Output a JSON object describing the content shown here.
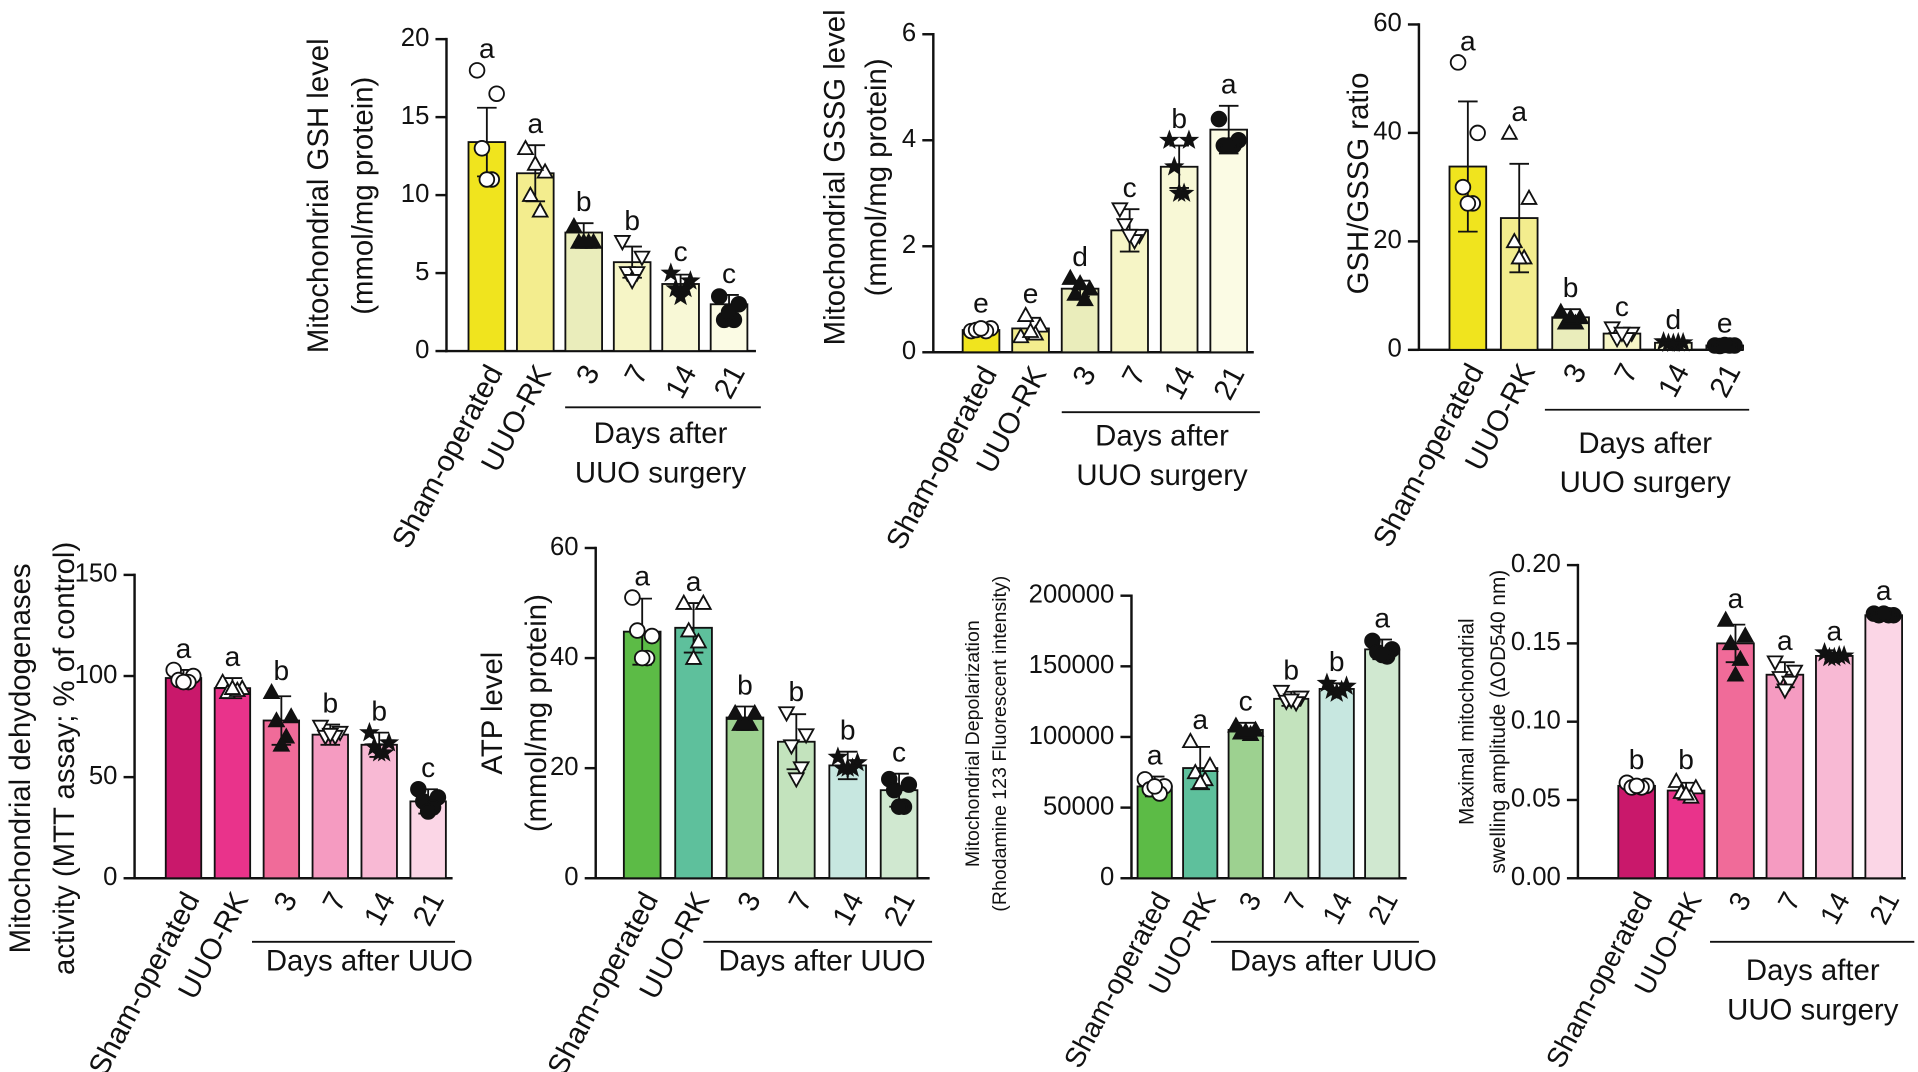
{
  "chart_data": [
    {
      "type": "bar",
      "ylabel": [
        "Mitochondrial GSH level",
        "(mmol/mg protein)"
      ],
      "categories": [
        "Sham-operated",
        "UUO-RK",
        "3",
        "7",
        "14",
        "21"
      ],
      "values": [
        13.4,
        11.4,
        7.6,
        5.7,
        4.3,
        3.0
      ],
      "errors": [
        2.2,
        1.8,
        0.6,
        1.0,
        0.6,
        0.6
      ],
      "letters": [
        "a",
        "a",
        "b",
        "b",
        "c",
        "c"
      ],
      "colors": [
        "#f0e41e",
        "#f3ed8e",
        "#eaedbb",
        "#f6f5c6",
        "#f8f8d6",
        "#fbfbe4"
      ],
      "markers": [
        "circle-open",
        "triangle-open",
        "triangle",
        "triangle-down-open",
        "star",
        "circle"
      ],
      "points": [
        [
          18,
          16.5,
          13,
          11,
          11
        ],
        [
          13,
          11.5,
          10,
          9,
          12
        ],
        [
          8,
          7,
          7,
          7,
          7
        ],
        [
          7,
          6,
          5,
          5,
          4.5
        ],
        [
          5,
          4.5,
          4,
          4,
          3.5
        ],
        [
          3.5,
          3,
          2,
          2,
          2.5
        ]
      ],
      "group_label": [
        "Days after",
        "UUO surgery"
      ],
      "ylim": [
        0,
        20
      ],
      "yticks": [
        0,
        5,
        10,
        15,
        20
      ]
    },
    {
      "type": "bar",
      "ylabel": [
        "Mitochondrial GSSG level",
        "(mmol/mg protein)"
      ],
      "categories": [
        "Sham-operated",
        "UUO-RK",
        "3",
        "7",
        "14",
        "21"
      ],
      "values": [
        0.42,
        0.45,
        1.2,
        2.3,
        3.5,
        4.2
      ],
      "errors": [
        0.1,
        0.2,
        0.15,
        0.4,
        0.4,
        0.45
      ],
      "letters": [
        "e",
        "e",
        "d",
        "c",
        "b",
        "a"
      ],
      "colors": [
        "#f0e41e",
        "#f3ed8e",
        "#eaedbb",
        "#f6f5c6",
        "#f8f8d6",
        "#fbfbe4"
      ],
      "markers": [
        "circle-open",
        "triangle-open",
        "triangle",
        "triangle-down-open",
        "star",
        "circle"
      ],
      "points": [
        [
          0.4,
          0.45,
          0.42,
          0.4,
          0.45
        ],
        [
          0.3,
          0.5,
          0.7,
          0.35,
          0.4
        ],
        [
          1.4,
          1.2,
          1.1,
          1.0,
          1.3
        ],
        [
          2.7,
          2.2,
          2.4,
          2.1,
          2.2
        ],
        [
          4.0,
          4.0,
          3.5,
          3.0,
          3.0
        ],
        [
          4.4,
          4.0,
          3.9,
          3.9,
          3.9
        ]
      ],
      "group_label": [
        "Days after",
        "UUO surgery"
      ],
      "ylim": [
        0,
        6
      ],
      "yticks": [
        0,
        2,
        4,
        6
      ]
    },
    {
      "type": "bar",
      "ylabel": [
        "GSH/GSSG ratio"
      ],
      "categories": [
        "Sham-operated",
        "UUO-RK",
        "3",
        "7",
        "14",
        "21"
      ],
      "values": [
        33.8,
        24.3,
        6,
        3,
        1.3,
        0.8
      ],
      "errors": [
        12,
        10,
        1.5,
        1,
        0.3,
        0.2
      ],
      "letters": [
        "a",
        "a",
        "b",
        "c",
        "d",
        "e"
      ],
      "colors": [
        "#f0e41e",
        "#f3ed8e",
        "#eaedbb",
        "#f6f5c6",
        "#f8f8d6",
        "#fbfbe4"
      ],
      "markers": [
        "circle-open",
        "triangle-open",
        "triangle",
        "triangle-down-open",
        "star",
        "circle"
      ],
      "points": [
        [
          53,
          40,
          30,
          27,
          27
        ],
        [
          40,
          28,
          20,
          17,
          17
        ],
        [
          7,
          6,
          5,
          5,
          6
        ],
        [
          4,
          3,
          2,
          2,
          3
        ],
        [
          1.5,
          1.3,
          1.2,
          1.3,
          1.2
        ],
        [
          0.8,
          0.8,
          0.7,
          0.8,
          0.9
        ]
      ],
      "group_label": [
        "Days after",
        "UUO surgery"
      ],
      "ylim": [
        0,
        60
      ],
      "yticks": [
        0,
        20,
        40,
        60
      ]
    },
    {
      "type": "bar",
      "ylabel": [
        "Mitochondrial dehydogenases",
        "activity (MTT assay; % of control)"
      ],
      "categories": [
        "Sham-operated",
        "UUO-RK",
        "3",
        "7",
        "14",
        "21"
      ],
      "values": [
        99,
        94,
        78,
        71,
        66,
        38
      ],
      "errors": [
        4,
        5,
        12,
        5,
        6,
        6
      ],
      "letters": [
        "a",
        "a",
        "b",
        "b",
        "b",
        "c"
      ],
      "colors": [
        "#c9186b",
        "#e9338b",
        "#f06b99",
        "#f59bc1",
        "#f8b9d4",
        "#fbd6e6"
      ],
      "markers": [
        "circle-open",
        "triangle-open",
        "triangle",
        "triangle-down-open",
        "star",
        "circle"
      ],
      "points": [
        [
          103,
          100,
          98,
          97,
          97
        ],
        [
          97,
          94,
          92,
          93,
          94
        ],
        [
          92,
          80,
          78,
          70,
          66
        ],
        [
          75,
          72,
          70,
          70,
          71
        ],
        [
          72,
          67,
          65,
          62,
          62
        ],
        [
          44,
          40,
          38,
          35,
          33
        ]
      ],
      "group_label": [
        "Days after UUO"
      ],
      "ylim": [
        0,
        150
      ],
      "yticks": [
        0,
        50,
        100,
        150
      ]
    },
    {
      "type": "bar",
      "ylabel": [
        "ATP level",
        "(mmol/mg protein)"
      ],
      "categories": [
        "Sham-operated",
        "UUO-RK",
        "3",
        "7",
        "14",
        "21"
      ],
      "values": [
        44.8,
        45.5,
        29.2,
        24.8,
        20.5,
        16
      ],
      "errors": [
        6,
        4.5,
        2,
        5,
        2.5,
        3
      ],
      "letters": [
        "a",
        "a",
        "b",
        "b",
        "b",
        "c"
      ],
      "colors": [
        "#5cbb46",
        "#5ec09c",
        "#9dd190",
        "#c3e3bd",
        "#c7e7e0",
        "#d0e8d0"
      ],
      "markers": [
        "circle-open",
        "triangle-open",
        "triangle",
        "triangle-down-open",
        "star",
        "circle"
      ],
      "points": [
        [
          51,
          44,
          45,
          40,
          40
        ],
        [
          50,
          50,
          45,
          43,
          40
        ],
        [
          30,
          30,
          28,
          28,
          28
        ],
        [
          30,
          26,
          24,
          20,
          18
        ],
        [
          22,
          21,
          20,
          20,
          20
        ],
        [
          18,
          17,
          16,
          13,
          13
        ]
      ],
      "group_label": [
        "Days after UUO"
      ],
      "ylim": [
        0,
        60
      ],
      "yticks": [
        0,
        20,
        40,
        60
      ]
    },
    {
      "type": "bar",
      "ylabel": [
        "Mitochondrial Depolarization",
        "(Rhodamine 123 Fluorescent intensity)"
      ],
      "categories": [
        "Sham-operated",
        "UUO-RK",
        "3",
        "7",
        "14",
        "21"
      ],
      "values": [
        65000,
        78000,
        105000,
        127000,
        134000,
        162000
      ],
      "errors": [
        7000,
        15000,
        5000,
        5000,
        4000,
        7000
      ],
      "letters": [
        "a",
        "a",
        "c",
        "b",
        "b",
        "a"
      ],
      "colors": [
        "#5cbb46",
        "#5ec09c",
        "#9dd190",
        "#c3e3bd",
        "#c7e7e0",
        "#d0e8d0"
      ],
      "markers": [
        "circle-open",
        "triangle-open",
        "triangle",
        "triangle-down-open",
        "star",
        "circle"
      ],
      "points": [
        [
          70000,
          65000,
          63000,
          60000,
          65000
        ],
        [
          97000,
          80000,
          75000,
          70000,
          68000
        ],
        [
          108000,
          105000,
          103000,
          102000,
          104000
        ],
        [
          132000,
          128000,
          125000,
          124000,
          126000
        ],
        [
          138000,
          136000,
          133000,
          133000,
          131000
        ],
        [
          168000,
          162000,
          160000,
          157000,
          158000
        ]
      ],
      "group_label": [
        "Days after UUO"
      ],
      "ylim": [
        0,
        200000
      ],
      "yticks": [
        0,
        50000,
        100000,
        150000,
        200000
      ]
    },
    {
      "type": "bar",
      "ylabel": [
        "Maximal mitochondrial",
        "swelling amplitude (ΔOD540 nm)"
      ],
      "categories": [
        "Sham-operated",
        "UUO-RK",
        "3",
        "7",
        "14",
        "21"
      ],
      "values": [
        0.059,
        0.056,
        0.15,
        0.13,
        0.142,
        0.168
      ],
      "errors": [
        0.003,
        0.005,
        0.012,
        0.008,
        0.002,
        0.002
      ],
      "letters": [
        "b",
        "b",
        "a",
        "a",
        "a",
        "a"
      ],
      "colors": [
        "#c9186b",
        "#e9338b",
        "#f06b99",
        "#f59bc1",
        "#f8b9d4",
        "#fbd6e6"
      ],
      "markers": [
        "circle-open",
        "triangle-open",
        "triangle",
        "triangle-down-open",
        "star",
        "circle"
      ],
      "points": [
        [
          0.061,
          0.059,
          0.058,
          0.058,
          0.059
        ],
        [
          0.062,
          0.058,
          0.055,
          0.052,
          0.054
        ],
        [
          0.165,
          0.155,
          0.15,
          0.14,
          0.13
        ],
        [
          0.138,
          0.132,
          0.128,
          0.125,
          0.12
        ],
        [
          0.144,
          0.142,
          0.141,
          0.142,
          0.141
        ],
        [
          0.169,
          0.168,
          0.168,
          0.168,
          0.169
        ]
      ],
      "group_label": [
        "Days after",
        "UUO surgery"
      ],
      "ylim": [
        0,
        0.2
      ],
      "yticks": [
        {
          "value": 0,
          "label": "0.00"
        },
        {
          "value": 0.05,
          "label": "0.05"
        },
        {
          "value": 0.1,
          "label": "0.10"
        },
        {
          "value": 0.15,
          "label": "0.15"
        },
        {
          "value": 0.2,
          "label": "0.20"
        }
      ]
    }
  ]
}
